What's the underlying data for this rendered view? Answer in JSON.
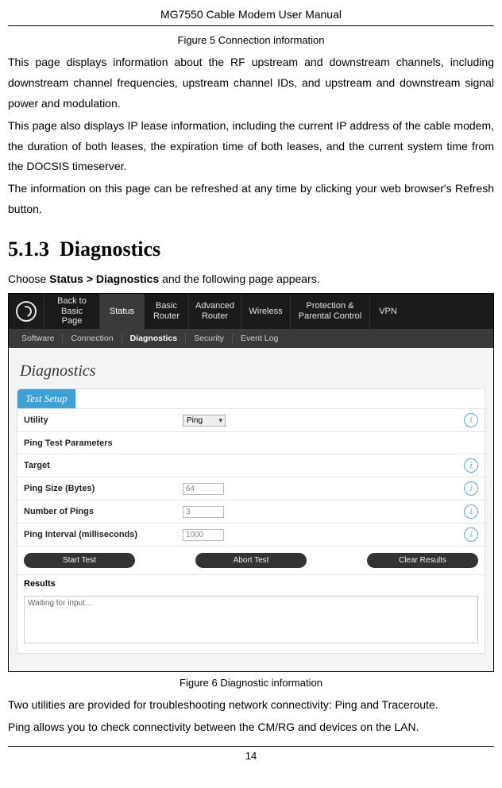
{
  "header": {
    "title": "MG7550 Cable Modem User Manual"
  },
  "figure5_caption": "Figure 5 Connection information",
  "paragraphs": {
    "p1": "This page displays information about the RF upstream and downstream channels, including downstream channel frequencies, upstream channel IDs, and upstream and downstream signal power and modulation.",
    "p2": "This page also displays IP lease information, including the current IP address of the cable modem, the duration of both leases, the expiration time of both leases, and the current system time from the DOCSIS timeserver.",
    "p3": "The information on this page can be refreshed at any time by clicking your web browser's Refresh button."
  },
  "section": {
    "number": "5.1.3",
    "title": "Diagnostics"
  },
  "instruction": {
    "prefix": "Choose ",
    "bold": "Status > Diagnostics",
    "suffix": " and the following page appears."
  },
  "screenshot": {
    "topnav": {
      "back": "Back to\nBasic Page",
      "items": [
        "Status",
        "Basic\nRouter",
        "Advanced\nRouter",
        "Wireless",
        "Protection &\nParental Control",
        "VPN"
      ],
      "selected_index": 0
    },
    "subnav": {
      "items": [
        "Software",
        "Connection",
        "Diagnostics",
        "Security",
        "Event Log"
      ],
      "selected_index": 2
    },
    "page_title": "Diagnostics",
    "panel_title": "Test Setup",
    "fields": {
      "utility": {
        "label": "Utility",
        "value": "Ping",
        "type": "select"
      },
      "ping_params": {
        "label": "Ping Test Parameters"
      },
      "target": {
        "label": "Target"
      },
      "ping_size": {
        "label": "Ping Size (Bytes)",
        "value": "64"
      },
      "num_pings": {
        "label": "Number of Pings",
        "value": "3"
      },
      "ping_interval": {
        "label": "Ping Interval (milliseconds)",
        "value": "1000"
      }
    },
    "buttons": {
      "start": "Start Test",
      "abort": "Abort Test",
      "clear": "Clear Results"
    },
    "results_label": "Results",
    "results_placeholder": "Waiting for input...",
    "info_glyph": "i"
  },
  "figure6_caption": "Figure 6 Diagnostic information",
  "after": {
    "p1": "Two utilities are provided for troubleshooting network connectivity: Ping and Traceroute.",
    "p2": "Ping allows you to check connectivity between the CM/RG and devices on the LAN."
  },
  "page_number": "14",
  "colors": {
    "nav_bg": "#1b1b1b",
    "subnav_bg": "#3a3a3a",
    "panel_head_bg": "#3fa0d8",
    "body_bg": "#f4f4f4",
    "info_ring": "#5aa5d6"
  }
}
